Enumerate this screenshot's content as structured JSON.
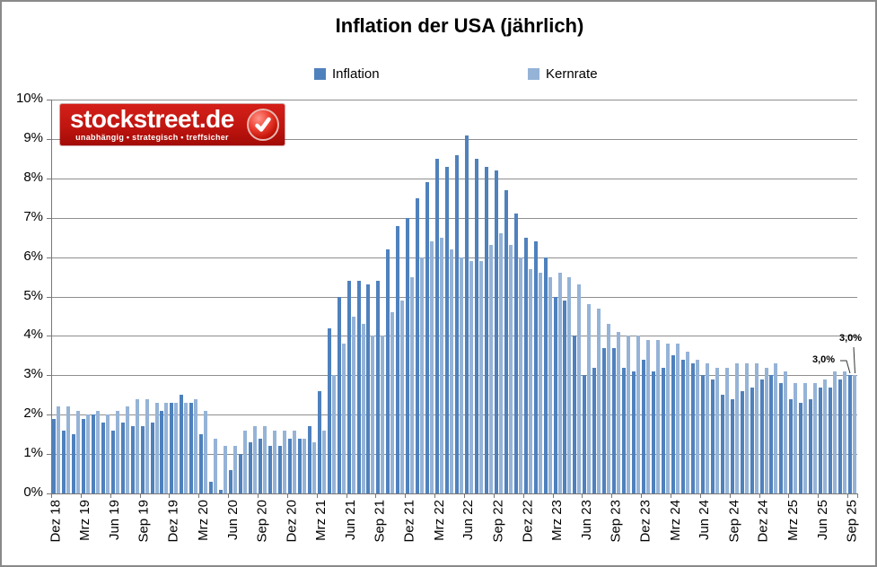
{
  "title": "Inflation der USA (jährlich)",
  "legend": [
    {
      "label": "Inflation",
      "color": "#4F81BD"
    },
    {
      "label": "Kernrate",
      "color": "#95B3D7"
    }
  ],
  "logo": {
    "name": "stockstreet.de",
    "tagline": "unabhängig • strategisch • treffsicher"
  },
  "annotations": {
    "inflation_last": "3,0%",
    "kernrate_last": "3,0%"
  },
  "colors": {
    "inflation": "#4F81BD",
    "kernrate": "#95B3D7",
    "gridline": "#8e8e8e",
    "logo_red": "#c01510"
  },
  "chart_data": {
    "type": "bar",
    "title": "Inflation der USA (jährlich)",
    "ylim": [
      0,
      10
    ],
    "y_ticks": [
      "0%",
      "1%",
      "2%",
      "3%",
      "4%",
      "5%",
      "6%",
      "7%",
      "8%",
      "9%",
      "10%"
    ],
    "grid": true,
    "legend_position": "top",
    "x_label_interval": 3,
    "categories": [
      "Dez 18",
      "Jan 19",
      "Feb 19",
      "Mrz 19",
      "Apr 19",
      "Mai 19",
      "Jun 19",
      "Jul 19",
      "Aug 19",
      "Sep 19",
      "Okt 19",
      "Nov 19",
      "Dez 19",
      "Jan 20",
      "Feb 20",
      "Mrz 20",
      "Apr 20",
      "Mai 20",
      "Jun 20",
      "Jul 20",
      "Aug 20",
      "Sep 20",
      "Okt 20",
      "Nov 20",
      "Dez 20",
      "Jan 21",
      "Feb 21",
      "Mrz 21",
      "Apr 21",
      "Mai 21",
      "Jun 21",
      "Jul 21",
      "Aug 21",
      "Sep 21",
      "Okt 21",
      "Nov 21",
      "Dez 21",
      "Jan 22",
      "Feb 22",
      "Mrz 22",
      "Apr 22",
      "Mai 22",
      "Jun 22",
      "Jul 22",
      "Aug 22",
      "Sep 22",
      "Okt 22",
      "Nov 22",
      "Dez 22",
      "Jan 23",
      "Feb 23",
      "Mrz 23",
      "Apr 23",
      "Mai 23",
      "Jun 23",
      "Jul 23",
      "Aug 23",
      "Sep 23",
      "Okt 23",
      "Nov 23",
      "Dez 23",
      "Jan 24",
      "Feb 24",
      "Mrz 24",
      "Apr 24",
      "Mai 24",
      "Jun 24",
      "Jul 24",
      "Aug 24",
      "Sep 24",
      "Okt 24",
      "Nov 24",
      "Dez 24",
      "Jan 25",
      "Feb 25",
      "Mrz 25",
      "Apr 25",
      "Mai 25",
      "Jun 25",
      "Jul 25",
      "Aug 25",
      "Sep 25"
    ],
    "series": [
      {
        "name": "Inflation",
        "color": "#4F81BD",
        "values": [
          1.9,
          1.6,
          1.5,
          1.9,
          2.0,
          1.8,
          1.6,
          1.8,
          1.7,
          1.7,
          1.8,
          2.1,
          2.3,
          2.5,
          2.3,
          1.5,
          0.3,
          0.1,
          0.6,
          1.0,
          1.3,
          1.4,
          1.2,
          1.2,
          1.4,
          1.4,
          1.7,
          2.6,
          4.2,
          5.0,
          5.4,
          5.4,
          5.3,
          5.4,
          6.2,
          6.8,
          7.0,
          7.5,
          7.9,
          8.5,
          8.3,
          8.6,
          9.1,
          8.5,
          8.3,
          8.2,
          7.7,
          7.1,
          6.5,
          6.4,
          6.0,
          5.0,
          4.9,
          4.0,
          3.0,
          3.2,
          3.7,
          3.7,
          3.2,
          3.1,
          3.4,
          3.1,
          3.2,
          3.5,
          3.4,
          3.3,
          3.0,
          2.9,
          2.5,
          2.4,
          2.6,
          2.7,
          2.9,
          3.0,
          2.8,
          2.4,
          2.3,
          2.4,
          2.7,
          2.7,
          2.9,
          3.0
        ]
      },
      {
        "name": "Kernrate",
        "color": "#95B3D7",
        "values": [
          2.2,
          2.2,
          2.1,
          2.0,
          2.1,
          2.0,
          2.1,
          2.2,
          2.4,
          2.4,
          2.3,
          2.3,
          2.3,
          2.3,
          2.4,
          2.1,
          1.4,
          1.2,
          1.2,
          1.6,
          1.7,
          1.7,
          1.6,
          1.6,
          1.6,
          1.4,
          1.3,
          1.6,
          3.0,
          3.8,
          4.5,
          4.3,
          4.0,
          4.0,
          4.6,
          4.9,
          5.5,
          6.0,
          6.4,
          6.5,
          6.2,
          6.0,
          5.9,
          5.9,
          6.3,
          6.6,
          6.3,
          6.0,
          5.7,
          5.6,
          5.5,
          5.6,
          5.5,
          5.3,
          4.8,
          4.7,
          4.3,
          4.1,
          4.0,
          4.0,
          3.9,
          3.9,
          3.8,
          3.8,
          3.6,
          3.4,
          3.3,
          3.2,
          3.2,
          3.3,
          3.3,
          3.3,
          3.2,
          3.3,
          3.1,
          2.8,
          2.8,
          2.8,
          2.9,
          3.1,
          3.1,
          3.0
        ]
      }
    ]
  }
}
